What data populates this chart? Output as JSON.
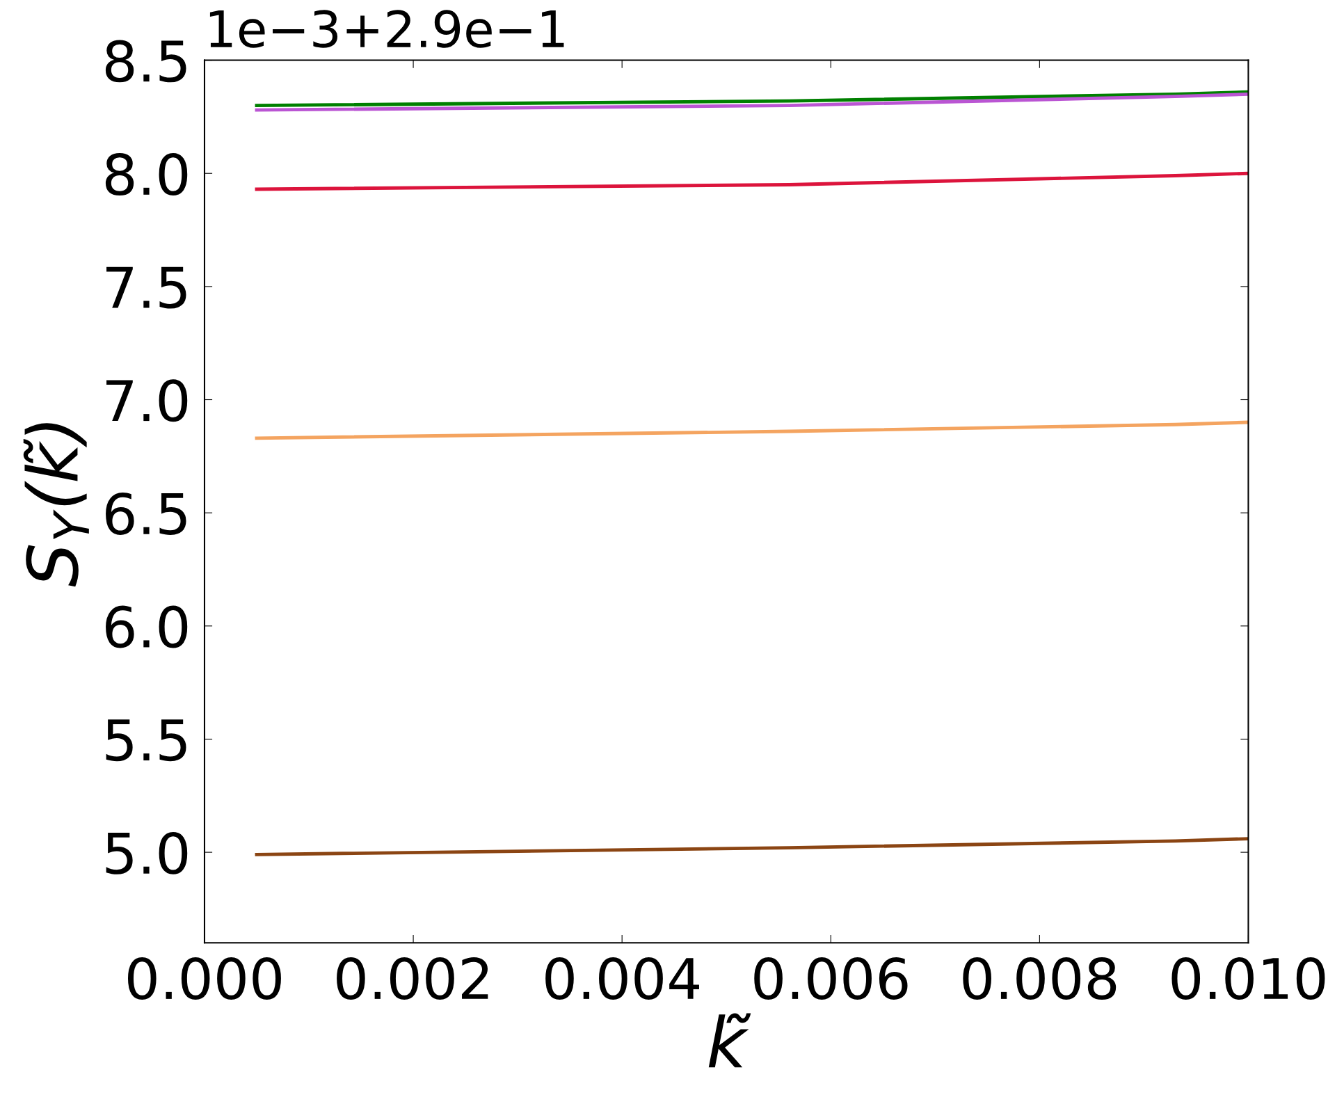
{
  "chart_data": {
    "type": "line",
    "xlabel": "k̃",
    "ylabel": "S$_{Y}$(k̃)",
    "annotations": [
      "1e−3+2.9e−1"
    ],
    "xlim": [
      0,
      0.01
    ],
    "ylim": [
      4.6,
      8.5
    ],
    "xticks": [
      {
        "value": 0,
        "label": "0.000"
      },
      {
        "value": 0.002,
        "label": "0.002"
      },
      {
        "value": 0.004,
        "label": "0.004"
      },
      {
        "value": 0.006,
        "label": "0.006"
      },
      {
        "value": 0.008,
        "label": "0.008"
      },
      {
        "value": 0.01,
        "label": "0.010"
      }
    ],
    "yticks": [
      {
        "value": 5,
        "label": "5.0"
      },
      5.5,
      {
        "value": 6,
        "label": "6.0"
      },
      6.5,
      {
        "value": 7,
        "label": "7.0"
      },
      7.5,
      {
        "value": 8,
        "label": "8.0"
      },
      8.5
    ],
    "grid": false,
    "marker": "none",
    "line_style": "solid",
    "x": [
      0.0005,
      0.0056,
      0.0093,
      0.01
    ],
    "series": [
      {
        "color": "#008000",
        "values": [
          8.3,
          8.32,
          8.35,
          8.36
        ]
      },
      {
        "color": "#ba55d3",
        "values": [
          8.28,
          8.3,
          8.34,
          8.35
        ]
      },
      {
        "color": "#dc143c",
        "values": [
          7.93,
          7.95,
          7.99,
          8.0
        ]
      },
      {
        "color": "#f4a460",
        "values": [
          6.83,
          6.86,
          6.89,
          6.9
        ]
      },
      {
        "color": "#8b4513",
        "values": [
          4.99,
          5.02,
          5.05,
          5.06
        ]
      }
    ]
  }
}
